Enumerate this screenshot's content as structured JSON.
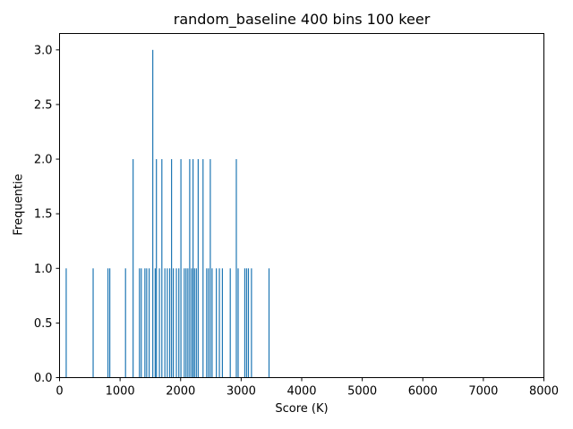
{
  "chart_data": {
    "type": "bar",
    "title": "random_baseline 400 bins 100 keer",
    "xlabel": "Score (K)",
    "ylabel": "Frequentie",
    "xlim": [
      0,
      8000
    ],
    "ylim": [
      0,
      3.15
    ],
    "x_ticks": [
      "0",
      "1000",
      "2000",
      "3000",
      "4000",
      "5000",
      "6000",
      "7000",
      "8000"
    ],
    "y_ticks": [
      "0.0",
      "0.5",
      "1.0",
      "1.5",
      "2.0",
      "2.5",
      "3.0"
    ],
    "bar_color": "#1f77b4",
    "grid": false,
    "legend": "none",
    "bars": [
      {
        "x": 110,
        "y": 1
      },
      {
        "x": 555,
        "y": 1
      },
      {
        "x": 800,
        "y": 1
      },
      {
        "x": 830,
        "y": 1
      },
      {
        "x": 1090,
        "y": 1
      },
      {
        "x": 1215,
        "y": 2
      },
      {
        "x": 1320,
        "y": 1
      },
      {
        "x": 1350,
        "y": 1
      },
      {
        "x": 1410,
        "y": 1
      },
      {
        "x": 1440,
        "y": 1
      },
      {
        "x": 1480,
        "y": 1
      },
      {
        "x": 1540,
        "y": 3
      },
      {
        "x": 1580,
        "y": 1
      },
      {
        "x": 1600,
        "y": 2
      },
      {
        "x": 1650,
        "y": 1
      },
      {
        "x": 1690,
        "y": 2
      },
      {
        "x": 1740,
        "y": 1
      },
      {
        "x": 1780,
        "y": 1
      },
      {
        "x": 1820,
        "y": 1
      },
      {
        "x": 1850,
        "y": 2
      },
      {
        "x": 1880,
        "y": 1
      },
      {
        "x": 1930,
        "y": 1
      },
      {
        "x": 1970,
        "y": 1
      },
      {
        "x": 2005,
        "y": 2
      },
      {
        "x": 2060,
        "y": 1
      },
      {
        "x": 2090,
        "y": 1
      },
      {
        "x": 2120,
        "y": 1
      },
      {
        "x": 2150,
        "y": 2
      },
      {
        "x": 2180,
        "y": 1
      },
      {
        "x": 2205,
        "y": 2
      },
      {
        "x": 2230,
        "y": 1
      },
      {
        "x": 2260,
        "y": 1
      },
      {
        "x": 2290,
        "y": 2
      },
      {
        "x": 2370,
        "y": 2
      },
      {
        "x": 2430,
        "y": 1
      },
      {
        "x": 2460,
        "y": 1
      },
      {
        "x": 2490,
        "y": 2
      },
      {
        "x": 2520,
        "y": 1
      },
      {
        "x": 2590,
        "y": 1
      },
      {
        "x": 2640,
        "y": 1
      },
      {
        "x": 2690,
        "y": 1
      },
      {
        "x": 2820,
        "y": 1
      },
      {
        "x": 2920,
        "y": 2
      },
      {
        "x": 2950,
        "y": 1
      },
      {
        "x": 3060,
        "y": 1
      },
      {
        "x": 3090,
        "y": 1
      },
      {
        "x": 3120,
        "y": 1
      },
      {
        "x": 3170,
        "y": 1
      },
      {
        "x": 3460,
        "y": 1
      }
    ]
  }
}
